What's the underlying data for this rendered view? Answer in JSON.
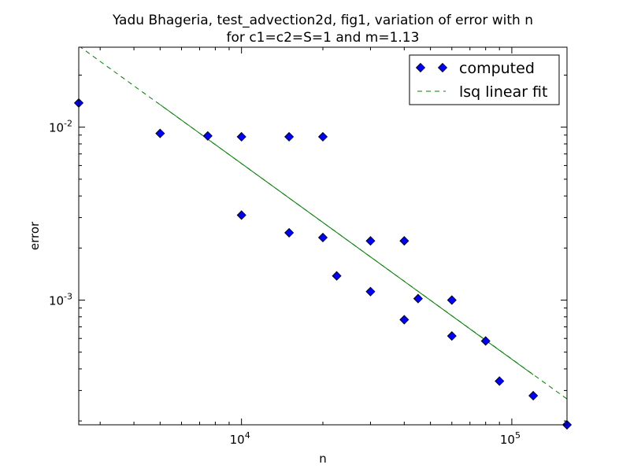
{
  "chart_data": {
    "type": "scatter",
    "title_lines": [
      "Yadu Bhageria, test_advection2d, fig1, variation of error with n",
      "for c1=c2=S=1 and m=1.13"
    ],
    "xlabel": "n",
    "ylabel": "error",
    "xscale": "log",
    "yscale": "log",
    "xlim": [
      2500,
      160000
    ],
    "ylim": [
      0.00019,
      0.029
    ],
    "x_ticks": [
      {
        "value": 10000,
        "base": "10",
        "exp": "4"
      },
      {
        "value": 100000,
        "base": "10",
        "exp": "5"
      }
    ],
    "y_ticks": [
      {
        "value": 0.01,
        "base": "10",
        "exp": "-2"
      },
      {
        "value": 0.001,
        "base": "10",
        "exp": "-3"
      }
    ],
    "grid": false,
    "legend_position": "top-right",
    "series": [
      {
        "name": "computed",
        "style": "markers",
        "marker": "diamond",
        "color": "#0000ff",
        "points": [
          [
            2500,
            0.0138
          ],
          [
            5000,
            0.0092
          ],
          [
            7500,
            0.0089
          ],
          [
            10000,
            0.0088
          ],
          [
            15000,
            0.0088
          ],
          [
            20000,
            0.0088
          ],
          [
            10000,
            0.0031
          ],
          [
            15000,
            0.00245
          ],
          [
            20000,
            0.0023
          ],
          [
            30000,
            0.0022
          ],
          [
            40000,
            0.0022
          ],
          [
            22500,
            0.00138
          ],
          [
            30000,
            0.00112
          ],
          [
            45000,
            0.00102
          ],
          [
            60000,
            0.001
          ],
          [
            40000,
            0.00077
          ],
          [
            60000,
            0.00062
          ],
          [
            80000,
            0.00058
          ],
          [
            90000,
            0.00034
          ],
          [
            120000,
            0.00028
          ],
          [
            160000,
            0.00019
          ]
        ]
      },
      {
        "name": "lsq linear fit",
        "style": "dashed-line",
        "color": "#008000",
        "points": [
          [
            2500,
            0.0295
          ],
          [
            160000,
            0.000268
          ]
        ]
      },
      {
        "style": "solid-line",
        "color": "#008000",
        "points": [
          [
            5000,
            0.0135
          ],
          [
            120000,
            0.00037
          ]
        ]
      }
    ]
  }
}
